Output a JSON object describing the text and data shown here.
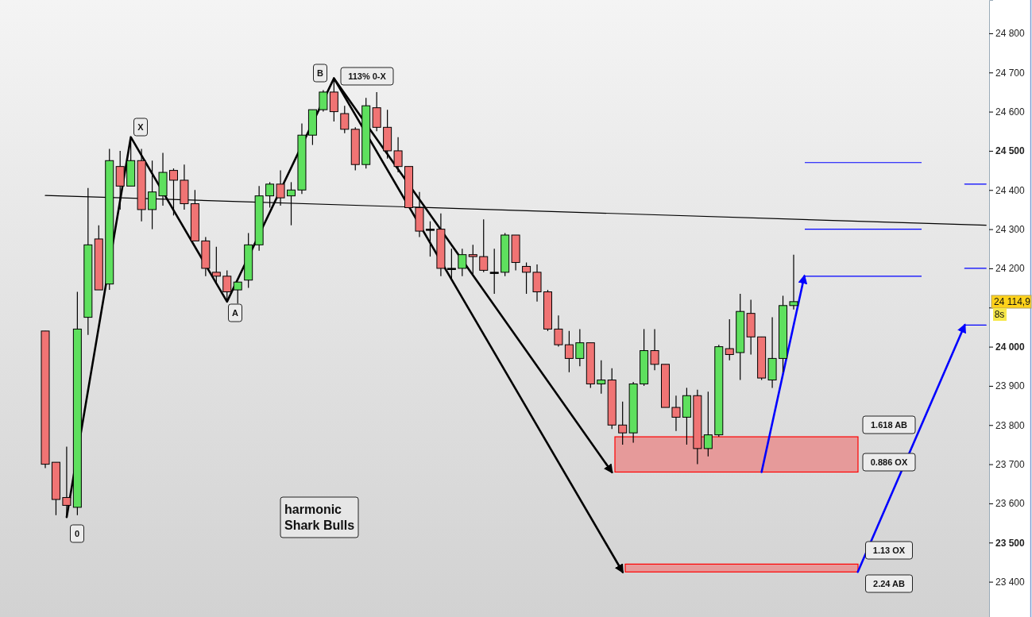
{
  "chart_data": {
    "type": "candlestick",
    "categories": [
      null,
      null,
      null,
      null,
      null,
      null,
      null,
      null,
      null,
      null,
      null,
      null,
      null,
      null,
      null,
      null,
      null,
      null,
      null,
      null,
      null,
      null,
      null,
      null,
      null,
      null,
      null,
      null,
      null,
      null,
      null,
      null,
      null,
      null,
      null,
      null,
      null,
      null,
      null,
      null,
      null,
      null,
      null,
      null,
      null,
      null,
      null,
      null,
      null,
      null,
      null,
      null,
      null,
      null,
      null,
      null,
      null,
      null,
      null,
      null,
      null,
      null,
      null,
      null,
      null,
      null,
      null,
      null,
      null,
      null,
      null,
      null,
      null,
      null,
      null,
      null,
      null,
      null,
      null,
      null,
      null,
      null,
      null,
      null,
      null,
      null,
      null,
      null,
      null
    ],
    "ohlc": [
      [
        24040,
        24040,
        23690,
        23700
      ],
      [
        23705,
        23705,
        23570,
        23610
      ],
      [
        23615,
        23745,
        23570,
        23595
      ],
      [
        23590,
        24140,
        23570,
        24045
      ],
      [
        24075,
        24405,
        24030,
        24260
      ],
      [
        24275,
        24310,
        24145,
        24145
      ],
      [
        24160,
        24505,
        24145,
        24475
      ],
      [
        24460,
        24500,
        24350,
        24410
      ],
      [
        24410,
        24535,
        24410,
        24475
      ],
      [
        24475,
        24505,
        24320,
        24350
      ],
      [
        24350,
        24475,
        24300,
        24395
      ],
      [
        24385,
        24495,
        24360,
        24445
      ],
      [
        24450,
        24455,
        24335,
        24425
      ],
      [
        24425,
        24465,
        24350,
        24365
      ],
      [
        24365,
        24400,
        24270,
        24270
      ],
      [
        24270,
        24280,
        24180,
        24200
      ],
      [
        24190,
        24255,
        24160,
        24180
      ],
      [
        24180,
        24195,
        24115,
        24140
      ],
      [
        24145,
        24165,
        24110,
        24165
      ],
      [
        24170,
        24290,
        24150,
        24260
      ],
      [
        24260,
        24410,
        24245,
        24385
      ],
      [
        24385,
        24420,
        24355,
        24415
      ],
      [
        24415,
        24450,
        24360,
        24380
      ],
      [
        24385,
        24420,
        24310,
        24400
      ],
      [
        24400,
        24570,
        24390,
        24540
      ],
      [
        24540,
        24605,
        24515,
        24605
      ],
      [
        24605,
        24655,
        24600,
        24650
      ],
      [
        24650,
        24685,
        24575,
        24600
      ],
      [
        24595,
        24615,
        24545,
        24555
      ],
      [
        24555,
        24560,
        24450,
        24465
      ],
      [
        24465,
        24635,
        24455,
        24615
      ],
      [
        24610,
        24650,
        24550,
        24560
      ],
      [
        24560,
        24605,
        24480,
        24500
      ],
      [
        24500,
        24535,
        24445,
        24460
      ],
      [
        24460,
        24460,
        24355,
        24355
      ],
      [
        24355,
        24395,
        24280,
        24295
      ],
      [
        24300,
        24320,
        24230,
        24300
      ],
      [
        24300,
        24340,
        24180,
        24200
      ],
      [
        24200,
        24250,
        24170,
        24200
      ],
      [
        24200,
        24250,
        24180,
        24235
      ],
      [
        24235,
        24260,
        24185,
        24230
      ],
      [
        24230,
        24325,
        24190,
        24195
      ],
      [
        24190,
        24250,
        24135,
        24190
      ],
      [
        24190,
        24290,
        24180,
        24285
      ],
      [
        24285,
        24285,
        24195,
        24215
      ],
      [
        24205,
        24215,
        24135,
        24190
      ],
      [
        24190,
        24210,
        24115,
        24140
      ],
      [
        24140,
        24145,
        24040,
        24045
      ],
      [
        24045,
        24080,
        24000,
        24005
      ],
      [
        24005,
        24040,
        23935,
        23970
      ],
      [
        23970,
        24045,
        23950,
        24010
      ],
      [
        24010,
        24010,
        23895,
        23905
      ],
      [
        23905,
        23965,
        23880,
        23915
      ],
      [
        23915,
        23945,
        23790,
        23800
      ],
      [
        23800,
        23860,
        23750,
        23780
      ],
      [
        23780,
        23910,
        23755,
        23905
      ],
      [
        23905,
        24045,
        23900,
        23990
      ],
      [
        23990,
        24045,
        23940,
        23955
      ],
      [
        23955,
        23955,
        23845,
        23845
      ],
      [
        23845,
        23875,
        23785,
        23820
      ],
      [
        23820,
        23895,
        23750,
        23875
      ],
      [
        23875,
        23890,
        23700,
        23740
      ],
      [
        23740,
        23885,
        23720,
        23775
      ],
      [
        23775,
        24005,
        23770,
        24000
      ],
      [
        23995,
        24070,
        23965,
        23980
      ],
      [
        23985,
        24135,
        23915,
        24090
      ],
      [
        24085,
        24120,
        23980,
        24025
      ],
      [
        24025,
        24025,
        23915,
        23920
      ],
      [
        23915,
        24075,
        23895,
        23970
      ],
      [
        23970,
        24130,
        23935,
        24105
      ],
      [
        24105,
        24235,
        24095,
        24115
      ],
      null,
      null,
      null,
      null,
      null,
      null,
      null,
      null,
      null,
      null,
      null,
      null,
      null,
      null,
      null,
      null,
      null,
      null
    ],
    "colors": [
      "#f07474",
      "#f07474",
      "#f07474",
      "#5ee05e",
      "#5ee05e",
      "#f07474",
      "#5ee05e",
      "#f07474",
      "#5ee05e",
      "#f07474",
      "#5ee05e",
      "#5ee05e",
      "#f07474",
      "#f07474",
      "#f07474",
      "#f07474",
      "#f07474",
      "#f07474",
      "#5ee05e",
      "#5ee05e",
      "#5ee05e",
      "#5ee05e",
      "#f07474",
      "#5ee05e",
      "#5ee05e",
      "#5ee05e",
      "#5ee05e",
      "#f07474",
      "#f07474",
      "#f07474",
      "#5ee05e",
      "#f07474",
      "#f07474",
      "#f07474",
      "#f07474",
      "#f07474",
      "#000000",
      "#f07474",
      "#000000",
      "#5ee05e",
      "#f07474",
      "#f07474",
      "#000000",
      "#5ee05e",
      "#f07474",
      "#f07474",
      "#f07474",
      "#f07474",
      "#f07474",
      "#f07474",
      "#5ee05e",
      "#f07474",
      "#5ee05e",
      "#f07474",
      "#f07474",
      "#5ee05e",
      "#5ee05e",
      "#f07474",
      "#f07474",
      "#f07474",
      "#5ee05e",
      "#f07474",
      "#5ee05e",
      "#5ee05e",
      "#f07474",
      "#5ee05e",
      "#f07474",
      "#f07474",
      "#5ee05e",
      "#5ee05e",
      "#5ee05e",
      null,
      null,
      null,
      null,
      null,
      null,
      null,
      null,
      null,
      null,
      null,
      null,
      null,
      null,
      null,
      null,
      null,
      null
    ],
    "series": [
      {
        "type": "line",
        "color": "#000000",
        "values": [
          24386,
          null,
          null,
          null,
          null,
          null,
          null,
          null,
          null,
          null,
          null,
          null,
          null,
          null,
          null,
          null,
          null,
          null,
          null,
          null,
          null,
          null,
          null,
          null,
          null,
          null,
          null,
          null,
          null,
          null,
          null,
          null,
          null,
          null,
          null,
          null,
          null,
          null,
          null,
          null,
          null,
          null,
          null,
          null,
          null,
          null,
          null,
          null,
          null,
          null,
          null,
          null,
          null,
          null,
          null,
          null,
          null,
          null,
          null,
          null,
          null,
          null,
          null,
          null,
          null,
          null,
          null,
          null,
          null,
          null,
          null,
          null,
          null,
          null,
          null,
          null,
          null,
          null,
          null,
          null,
          null,
          null,
          null,
          null,
          null,
          null,
          null,
          null,
          24310
        ]
      },
      {
        "type": "line",
        "color": "#000000",
        "values": [
          null,
          null,
          23565,
          null,
          null,
          null,
          null,
          null,
          24535,
          null,
          null,
          null,
          null,
          null,
          null,
          null,
          null,
          24115,
          null,
          null,
          null,
          null,
          null,
          null,
          null,
          null,
          null,
          24685,
          null,
          null,
          null,
          null,
          null,
          null,
          null,
          null,
          null,
          null,
          null,
          null,
          null,
          null,
          null,
          null,
          null,
          null,
          null,
          null,
          null,
          null,
          null,
          null,
          null,
          23680,
          null,
          null,
          null,
          null,
          null,
          null,
          null,
          null,
          null,
          null,
          null,
          null,
          null,
          null,
          null,
          null,
          null,
          null,
          null,
          null,
          null,
          null,
          null,
          null,
          null,
          null,
          null,
          null,
          null,
          null,
          null,
          null,
          null,
          null,
          null
        ]
      },
      {
        "type": "line",
        "color": "#000000",
        "values": [
          null,
          null,
          null,
          null,
          null,
          null,
          null,
          null,
          null,
          null,
          null,
          null,
          null,
          null,
          null,
          null,
          null,
          null,
          null,
          null,
          null,
          null,
          null,
          null,
          null,
          null,
          null,
          24685,
          null,
          null,
          null,
          null,
          null,
          null,
          null,
          null,
          null,
          null,
          null,
          null,
          null,
          null,
          null,
          null,
          null,
          null,
          null,
          null,
          null,
          null,
          null,
          null,
          null,
          null,
          23425,
          null,
          null,
          null,
          null,
          null,
          null,
          null,
          null,
          null,
          null,
          null,
          null,
          null,
          null,
          null,
          null,
          null,
          null,
          null,
          null,
          null,
          null,
          null,
          null,
          null,
          null,
          null,
          null,
          null,
          null,
          null,
          null,
          null,
          null
        ]
      },
      {
        "type": "line",
        "color": "#0000ff",
        "values": [
          null,
          null,
          null,
          null,
          null,
          null,
          null,
          null,
          null,
          null,
          null,
          null,
          null,
          null,
          null,
          null,
          null,
          null,
          null,
          null,
          null,
          null,
          null,
          null,
          null,
          null,
          null,
          null,
          null,
          null,
          null,
          null,
          null,
          null,
          null,
          null,
          null,
          null,
          null,
          null,
          null,
          null,
          null,
          null,
          null,
          null,
          null,
          null,
          null,
          null,
          null,
          null,
          null,
          null,
          null,
          null,
          null,
          null,
          null,
          null,
          null,
          null,
          null,
          null,
          null,
          null,
          null,
          23680,
          null,
          null,
          null,
          24180,
          null,
          null,
          null,
          null,
          null,
          null,
          null,
          null,
          null,
          null,
          null,
          null,
          null,
          null,
          null,
          null,
          null
        ]
      },
      {
        "type": "line",
        "color": "#0000ff",
        "values": [
          null,
          null,
          null,
          null,
          null,
          null,
          null,
          null,
          null,
          null,
          null,
          null,
          null,
          null,
          null,
          null,
          null,
          null,
          null,
          null,
          null,
          null,
          null,
          null,
          null,
          null,
          null,
          null,
          null,
          null,
          null,
          null,
          null,
          null,
          null,
          null,
          null,
          null,
          null,
          null,
          null,
          null,
          null,
          null,
          null,
          null,
          null,
          null,
          null,
          null,
          null,
          null,
          null,
          null,
          null,
          null,
          null,
          null,
          null,
          null,
          null,
          null,
          null,
          null,
          null,
          null,
          null,
          null,
          null,
          null,
          null,
          null,
          null,
          null,
          null,
          null,
          23425,
          null,
          null,
          null,
          null,
          null,
          null,
          null,
          null,
          null,
          24055,
          null,
          null
        ]
      },
      {
        "type": "line",
        "color": "#0000ff",
        "values": [
          null,
          null,
          null,
          null,
          null,
          null,
          null,
          null,
          null,
          null,
          null,
          null,
          null,
          null,
          null,
          null,
          null,
          null,
          null,
          null,
          null,
          null,
          null,
          null,
          null,
          null,
          null,
          null,
          null,
          null,
          null,
          null,
          null,
          null,
          null,
          null,
          null,
          null,
          null,
          null,
          null,
          null,
          null,
          null,
          null,
          null,
          null,
          null,
          null,
          null,
          null,
          null,
          null,
          null,
          null,
          null,
          null,
          null,
          null,
          null,
          null,
          null,
          null,
          null,
          null,
          null,
          null,
          null,
          null,
          null,
          null,
          null,
          null,
          null,
          null,
          null,
          null,
          null,
          null,
          null,
          null,
          null,
          null,
          null,
          null,
          null,
          24415,
          null,
          24415
        ]
      },
      {
        "type": "line",
        "color": "#0000ff",
        "values": [
          null,
          null,
          null,
          null,
          null,
          null,
          null,
          null,
          null,
          null,
          null,
          null,
          null,
          null,
          null,
          null,
          null,
          null,
          null,
          null,
          null,
          null,
          null,
          null,
          null,
          null,
          null,
          null,
          null,
          null,
          null,
          null,
          null,
          null,
          null,
          null,
          null,
          null,
          null,
          null,
          null,
          null,
          null,
          null,
          null,
          null,
          null,
          null,
          null,
          null,
          null,
          null,
          null,
          null,
          null,
          null,
          null,
          null,
          null,
          null,
          null,
          null,
          null,
          null,
          null,
          null,
          null,
          null,
          null,
          null,
          null,
          null,
          null,
          null,
          null,
          null,
          null,
          null,
          null,
          null,
          null,
          null,
          null,
          null,
          null,
          null,
          24200,
          null,
          24200
        ]
      },
      {
        "type": "line",
        "color": "#0000ff",
        "values": [
          null,
          null,
          null,
          null,
          null,
          null,
          null,
          null,
          null,
          null,
          null,
          null,
          null,
          null,
          null,
          null,
          null,
          null,
          null,
          null,
          null,
          null,
          null,
          null,
          null,
          null,
          null,
          null,
          null,
          null,
          null,
          null,
          null,
          null,
          null,
          null,
          null,
          null,
          null,
          null,
          null,
          null,
          null,
          null,
          null,
          null,
          null,
          null,
          null,
          null,
          null,
          null,
          null,
          null,
          null,
          null,
          null,
          null,
          null,
          null,
          null,
          null,
          null,
          null,
          null,
          null,
          null,
          null,
          null,
          null,
          null,
          null,
          null,
          null,
          null,
          null,
          null,
          null,
          null,
          null,
          null,
          null,
          null,
          null,
          null,
          null,
          24055,
          null,
          24055
        ]
      }
    ],
    "ylim": [
      23310,
      24885
    ],
    "yticks": [
      {
        "value": 23400,
        "label": "23 400"
      },
      {
        "value": 23500,
        "label": "23 500"
      },
      {
        "value": 23600,
        "label": "23 600"
      },
      {
        "value": 23700,
        "label": "23 700"
      },
      {
        "value": 23800,
        "label": "23 800"
      },
      {
        "value": 23900,
        "label": "23 900"
      },
      {
        "value": 24000,
        "label": "24 000"
      },
      {
        "value": 24100,
        "label": null
      },
      {
        "value": 24200,
        "label": "24 200"
      },
      {
        "value": 24300,
        "label": "24 300"
      },
      {
        "value": 24400,
        "label": "24 400"
      },
      {
        "value": 24500,
        "label": "24 500"
      },
      {
        "value": 24600,
        "label": "24 600"
      },
      {
        "value": 24700,
        "label": "24 700"
      },
      {
        "value": 24800,
        "label": "24 800"
      }
    ],
    "ref_lines": [
      {
        "axis": "y",
        "value": 24470,
        "color": "#0000ff"
      },
      {
        "axis": "y",
        "value": 24300,
        "color": "#0000ff"
      },
      {
        "axis": "y",
        "value": 24180,
        "color": "#0000ff"
      }
    ],
    "bands": [
      {
        "axis": "y",
        "from": 23680,
        "to": 23770,
        "color": "#e69a9a"
      },
      {
        "axis": "y",
        "from": 23425,
        "to": 23445,
        "color": "#e69a9a"
      }
    ],
    "annotations": [
      "0",
      "X",
      "A",
      "B",
      "113% 0-X",
      "harmonic\nShark Bulls",
      "1.618 AB",
      "0.886 OX",
      "1.13 OX",
      "2.24 AB",
      "24 114,9",
      "8s"
    ],
    "grid": false
  }
}
